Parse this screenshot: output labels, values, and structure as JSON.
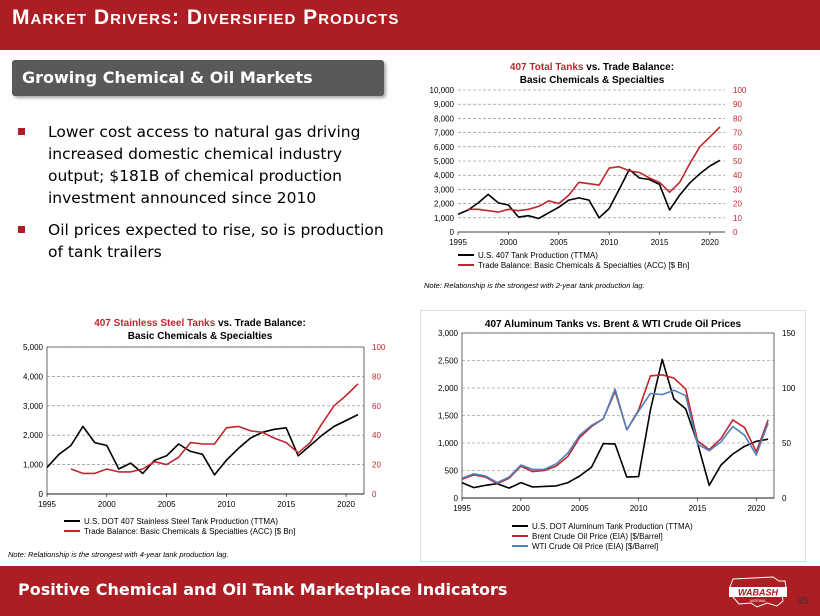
{
  "header": {
    "title": "Market Drivers: Diversified Products"
  },
  "section_label": "Growing Chemical & Oil Markets",
  "bullets": [
    "Lower cost access to natural gas driving increased domestic chemical industry output; $181B of chemical production investment announced since 2010",
    "Oil prices expected to rise, so is production of tank trailers"
  ],
  "footer": {
    "text": "Positive Chemical and Oil Tank Marketplace Indicators",
    "logo_text": "WABASH",
    "logo_subtext": "NATIONAL",
    "page_number": "35"
  },
  "colors": {
    "brand_red": "#ad1e24",
    "pill_gray": "#595959",
    "black_series": "#000000",
    "red_series": "#c0272d",
    "blue_series": "#4f81bd"
  },
  "chart_data": [
    {
      "type": "line",
      "title_red": "407 Total Tanks",
      "title_black": " vs. Trade Balance:",
      "subtitle": "Basic Chemicals & Specialties",
      "xlim": [
        1995,
        2021.5
      ],
      "x_ticks": [
        1995,
        2000,
        2005,
        2010,
        2015,
        2020
      ],
      "ylim": [
        0,
        10000
      ],
      "y_ticks": [
        "0",
        "1,000",
        "2,000",
        "3,000",
        "4,000",
        "5,000",
        "6,000",
        "7,000",
        "8,000",
        "9,000",
        "10,000"
      ],
      "y2lim": [
        0,
        100
      ],
      "y2_ticks": [
        "0",
        "10",
        "20",
        "30",
        "40",
        "50",
        "60",
        "70",
        "80",
        "90",
        "100"
      ],
      "grid": true,
      "legend_position": "bottom",
      "note": "Note: Relationship is the strongest with 2-year tank production lag.",
      "series": [
        {
          "name": "U.S. 407 Tank Production (TTMA)",
          "axis": "left",
          "color": "#000000",
          "x": [
            1995,
            1996,
            1997,
            1998,
            1999,
            2000,
            2001,
            2002,
            2003,
            2004,
            2005,
            2006,
            2007,
            2008,
            2009,
            2010,
            2011,
            2012,
            2013,
            2014,
            2015,
            2016,
            2017,
            2018,
            2019,
            2020,
            2021
          ],
          "y": [
            1250,
            1550,
            2050,
            2650,
            2050,
            1900,
            1050,
            1150,
            950,
            1350,
            1750,
            2250,
            2400,
            2250,
            1000,
            1650,
            3000,
            4400,
            3800,
            3700,
            3350,
            1550,
            2600,
            3450,
            4100,
            4650,
            5050
          ]
        },
        {
          "name": "Trade Balance: Basic Chemicals & Specialties (ACC) [$ Bn]",
          "axis": "right",
          "color": "#c0272d",
          "x": [
            1996,
            1997,
            1998,
            1999,
            2000,
            2001,
            2002,
            2003,
            2004,
            2005,
            2006,
            2007,
            2008,
            2009,
            2010,
            2011,
            2012,
            2013,
            2014,
            2015,
            2016,
            2017,
            2018,
            2019,
            2020,
            2021
          ],
          "y": [
            16,
            16,
            15,
            14,
            16,
            15,
            16,
            18,
            22,
            20,
            26,
            35,
            34,
            33,
            45,
            46,
            43,
            42,
            38,
            35,
            28,
            35,
            48,
            60,
            67,
            74
          ]
        }
      ]
    },
    {
      "type": "line",
      "title_red": "407 Stainless Steel Tanks",
      "title_black": " vs. Trade Balance:",
      "subtitle": "Basic Chemicals & Specialties",
      "xlim": [
        1995,
        2021.5
      ],
      "x_ticks": [
        1995,
        2000,
        2005,
        2010,
        2015,
        2020
      ],
      "ylim": [
        0,
        5000
      ],
      "y_ticks": [
        "0",
        "1,000",
        "2,000",
        "3,000",
        "4,000",
        "5,000"
      ],
      "y2lim": [
        0,
        100
      ],
      "y2_ticks": [
        "0",
        "20",
        "40",
        "60",
        "80",
        "100"
      ],
      "grid": true,
      "legend_position": "bottom",
      "note": "Note: Relationship is the strongest with 4-year tank production lag.",
      "series": [
        {
          "name": "U.S. DOT 407 Stainless Steel Tank Production (TTMA)",
          "axis": "left",
          "color": "#000000",
          "x": [
            1995,
            1996,
            1997,
            1998,
            1999,
            2000,
            2001,
            2002,
            2003,
            2004,
            2005,
            2006,
            2007,
            2008,
            2009,
            2010,
            2011,
            2012,
            2013,
            2014,
            2015,
            2016,
            2017,
            2018,
            2019,
            2020,
            2021
          ],
          "y": [
            900,
            1350,
            1650,
            2300,
            1750,
            1650,
            850,
            1050,
            700,
            1150,
            1300,
            1700,
            1450,
            1350,
            650,
            1150,
            1550,
            1900,
            2100,
            2200,
            2250,
            1300,
            1650,
            2000,
            2300,
            2500,
            2700
          ]
        },
        {
          "name": "Trade Balance: Basic Chemicals & Specialties (ACC) [$ Bn]",
          "axis": "right",
          "color": "#c0272d",
          "x": [
            1997,
            1998,
            1999,
            2000,
            2001,
            2002,
            2003,
            2004,
            2005,
            2006,
            2007,
            2008,
            2009,
            2010,
            2011,
            2012,
            2013,
            2014,
            2015,
            2016,
            2017,
            2018,
            2019,
            2020,
            2021
          ],
          "y": [
            17,
            14,
            14,
            17,
            15,
            15,
            17,
            22,
            20,
            25,
            35,
            34,
            34,
            45,
            46,
            43,
            42,
            38,
            35,
            28,
            35,
            48,
            60,
            67,
            75
          ]
        }
      ]
    },
    {
      "type": "line",
      "title": "407 Aluminum Tanks vs. Brent & WTI Crude Oil Prices",
      "xlim": [
        1995,
        2021.5
      ],
      "x_ticks": [
        1995,
        2000,
        2005,
        2010,
        2015,
        2020
      ],
      "ylim": [
        0,
        3000
      ],
      "y_ticks": [
        "0",
        "500",
        "1,000",
        "1,500",
        "2,000",
        "2,500",
        "3,000"
      ],
      "y2lim": [
        0,
        150
      ],
      "y2_ticks": [
        "0",
        "50",
        "100",
        "150"
      ],
      "grid": true,
      "legend_position": "bottom",
      "series": [
        {
          "name": "U.S. DOT Aluminum Tank Production (TTMA)",
          "axis": "left",
          "color": "#000000",
          "x": [
            1995,
            1996,
            1997,
            1998,
            1999,
            2000,
            2001,
            2002,
            2003,
            2004,
            2005,
            2006,
            2007,
            2008,
            2009,
            2010,
            2011,
            2012,
            2013,
            2014,
            2015,
            2016,
            2017,
            2018,
            2019,
            2020,
            2021
          ],
          "y": [
            280,
            190,
            230,
            260,
            180,
            280,
            200,
            210,
            220,
            280,
            400,
            560,
            990,
            980,
            380,
            390,
            1600,
            2520,
            1800,
            1620,
            1000,
            230,
            600,
            800,
            940,
            1030,
            1070
          ]
        },
        {
          "name": "Brent Crude Oil Price (EIA) [$/Barrel]",
          "axis": "right",
          "color": "#c0272d",
          "x": [
            1995,
            1996,
            1997,
            1998,
            1999,
            2000,
            2001,
            2002,
            2003,
            2004,
            2005,
            2006,
            2007,
            2008,
            2009,
            2010,
            2011,
            2012,
            2013,
            2014,
            2015,
            2016,
            2017,
            2018,
            2019,
            2020,
            2021
          ],
          "y": [
            17,
            21,
            19,
            13,
            18,
            29,
            24,
            25,
            29,
            38,
            55,
            65,
            72,
            97,
            62,
            80,
            111,
            112,
            109,
            99,
            52,
            44,
            54,
            71,
            64,
            42,
            71
          ]
        },
        {
          "name": "WTI Crude Oil Price (EIA) [$/Barrel]",
          "axis": "right",
          "color": "#4f81bd",
          "x": [
            1995,
            1996,
            1997,
            1998,
            1999,
            2000,
            2001,
            2002,
            2003,
            2004,
            2005,
            2006,
            2007,
            2008,
            2009,
            2010,
            2011,
            2012,
            2013,
            2014,
            2015,
            2016,
            2017,
            2018,
            2019,
            2020,
            2021
          ],
          "y": [
            18,
            22,
            20,
            14,
            19,
            30,
            26,
            26,
            31,
            41,
            57,
            66,
            72,
            99,
            62,
            79,
            95,
            94,
            98,
            93,
            49,
            43,
            51,
            65,
            57,
            39,
            68
          ]
        }
      ]
    }
  ]
}
